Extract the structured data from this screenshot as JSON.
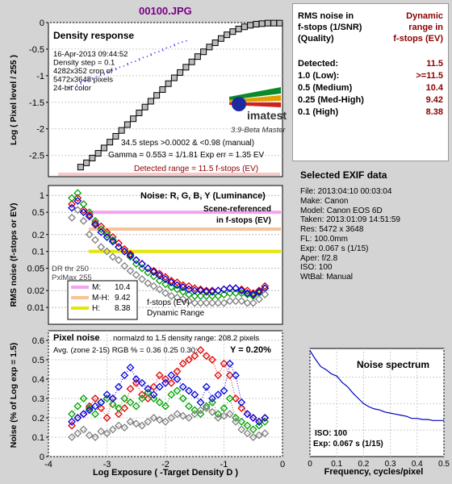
{
  "file_title": "00100.JPG",
  "rms_table": {
    "header_left": [
      "RMS noise in",
      "f-stops (1/SNR)",
      "(Quality)"
    ],
    "header_right": [
      "Dynamic",
      "range in",
      "f-stops (EV)"
    ],
    "rows": [
      {
        "label": "Detected:",
        "value": "11.5"
      },
      {
        "label": "1.0  (Low):",
        "value": ">=11.5"
      },
      {
        "label": "0.5  (Medium)",
        "value": "10.4"
      },
      {
        "label": "0.25 (Med-High)",
        "value": "9.42"
      },
      {
        "label": "0.1  (High)",
        "value": "8.38"
      }
    ]
  },
  "exif": {
    "title": "Selected EXIF data",
    "lines": [
      "File:  2013:04:10 00:03:04",
      "Make:  Canon",
      "Model: Canon EOS 6D",
      "Taken:  2013:01:09 14:51:59",
      "Res:    5472 x 3648",
      "FL:  100.0mm",
      "Exp:  0.067 s  (1/15)",
      "Aper:  f/2.8",
      "ISO:  100",
      "WtBal: Manual"
    ]
  },
  "density_panel": {
    "title": "Density response",
    "info": [
      "16-Apr-2013 09:44:52",
      "Density step = 0.1",
      "4282x352 crop of",
      "5472x3648 pixels",
      "24-bit color"
    ],
    "logo": "imatest",
    "version": "3.9-Beta  Master",
    "stats": [
      "34.5 steps >0.0002 & <0.98 (manual)",
      "Gamma = 0.553 = 1/1.81  Exp err = 1.35 EV"
    ],
    "detected_range": "Detected range = 11.5 f-stops (EV)",
    "ylabel": "Log ( Pixel level / 255 )"
  },
  "rms_panel": {
    "title": "Noise: R, G, B, Y (Luminance)",
    "note": [
      "Scene-referenced",
      "in f-stops (EV)"
    ],
    "dr_note": [
      "DR thr 250",
      "PxlMax 255"
    ],
    "legend": [
      {
        "label": "M:",
        "value": "10.4",
        "color": "#f4a3f0"
      },
      {
        "label": "M-H:",
        "value": "9.42",
        "color": "#f6c39a"
      },
      {
        "label": "H:",
        "value": "8.38",
        "color": "#e6e600"
      }
    ],
    "legend_note": [
      "f-stops (EV)",
      "Dynamic Range"
    ],
    "ylabel": "RMS noise (f-stops or EV)"
  },
  "pixel_panel": {
    "title": "Pixel noise",
    "norm": "normalzd to 1.5 density range: 208.2 pixels",
    "avg": "Avg. (zone 2-15) RGB % = 0.36  0.25  0.30;",
    "y_value": "Y = 0.20%",
    "ylabel": "Noise (% of Log exp = 1.5)",
    "xlabel": "Log Exposure ( -Target Density D )"
  },
  "spectrum_panel": {
    "title": "Noise spectrum",
    "iso": "ISO:   100",
    "exp": "Exp:   0.067 s   (1/15)",
    "xlabel": "Frequency, cycles/pixel"
  },
  "colors": {
    "red": "#e00000",
    "green": "#00a000",
    "blue": "#0000e0",
    "gray": "#808080",
    "accent": "#8b0000"
  },
  "chart_data": [
    {
      "type": "scatter",
      "title": "Density response",
      "xlabel": "",
      "ylabel": "Log ( Pixel level / 255 )",
      "xlim": [
        -4,
        0
      ],
      "ylim": [
        -2.9,
        0
      ],
      "yticks": [
        0,
        -0.5,
        -1,
        -1.5,
        -2,
        -2.5
      ],
      "series": [
        {
          "name": "",
          "marker": "square",
          "x": [
            -3.45,
            -3.35,
            -3.25,
            -3.15,
            -3.05,
            -2.95,
            -2.85,
            -2.75,
            -2.65,
            -2.55,
            -2.45,
            -2.35,
            -2.25,
            -2.15,
            -2.05,
            -1.95,
            -1.85,
            -1.75,
            -1.65,
            -1.55,
            -1.45,
            -1.35,
            -1.25,
            -1.15,
            -1.05,
            -0.95,
            -0.85,
            -0.75,
            -0.65,
            -0.55,
            -0.45,
            -0.35,
            -0.25,
            -0.15,
            -0.05
          ],
          "y": [
            -2.72,
            -2.64,
            -2.55,
            -2.46,
            -2.36,
            -2.25,
            -2.14,
            -2.03,
            -1.92,
            -1.81,
            -1.7,
            -1.59,
            -1.48,
            -1.37,
            -1.26,
            -1.15,
            -1.04,
            -0.94,
            -0.84,
            -0.74,
            -0.64,
            -0.55,
            -0.46,
            -0.38,
            -0.3,
            -0.23,
            -0.17,
            -0.12,
            -0.08,
            -0.05,
            -0.03,
            -0.02,
            -0.01,
            -0.01,
            -0.01
          ]
        },
        {
          "name": "",
          "marker": "dots",
          "x": [
            -3.65,
            -3.45,
            -3.25,
            -3.05,
            -2.85,
            -2.65,
            -2.45,
            -2.25,
            -2.05,
            -1.85
          ],
          "y": [
            -1.22,
            -1.13,
            -1.04,
            -0.95,
            -0.86,
            -0.77,
            -0.68,
            -0.59,
            -0.5,
            -0.41
          ]
        }
      ]
    },
    {
      "type": "scatter",
      "title": "Noise: R, G, B, Y (Luminance)",
      "ylabel": "RMS noise (f-stops or EV)",
      "yscale": "log",
      "ylim": [
        0.005,
        1.5
      ],
      "xlim": [
        -4,
        0
      ],
      "ytick_labels": [
        "1",
        "0.5",
        "0.2",
        "0.1",
        "0.05",
        "0.02",
        "0.01"
      ],
      "thresholds": [
        0.5,
        0.25,
        0.1
      ],
      "x": [
        -3.6,
        -3.5,
        -3.4,
        -3.3,
        -3.2,
        -3.1,
        -3.0,
        -2.9,
        -2.8,
        -2.7,
        -2.6,
        -2.5,
        -2.4,
        -2.3,
        -2.2,
        -2.1,
        -2.0,
        -1.9,
        -1.8,
        -1.7,
        -1.6,
        -1.5,
        -1.4,
        -1.3,
        -1.2,
        -1.1,
        -1.0,
        -0.9,
        -0.8,
        -0.7,
        -0.6,
        -0.5,
        -0.4,
        -0.3
      ],
      "series": [
        {
          "name": "R",
          "values": [
            0.7,
            0.9,
            0.55,
            0.45,
            0.32,
            0.28,
            0.22,
            0.18,
            0.14,
            0.11,
            0.09,
            0.07,
            0.06,
            0.05,
            0.045,
            0.04,
            0.035,
            0.03,
            0.028,
            0.025,
            0.024,
            0.022,
            0.021,
            0.02,
            0.02,
            0.02,
            0.021,
            0.022,
            0.022,
            0.021,
            0.02,
            0.018,
            0.02,
            0.024
          ]
        },
        {
          "name": "G",
          "values": [
            0.9,
            1.1,
            0.7,
            0.5,
            0.35,
            0.25,
            0.2,
            0.16,
            0.12,
            0.1,
            0.08,
            0.06,
            0.05,
            0.042,
            0.036,
            0.03,
            0.026,
            0.023,
            0.021,
            0.019,
            0.017,
            0.016,
            0.016,
            0.016,
            0.016,
            0.016,
            0.017,
            0.018,
            0.018,
            0.018,
            0.017,
            0.016,
            0.018,
            0.022
          ]
        },
        {
          "name": "B",
          "values": [
            0.6,
            0.8,
            0.5,
            0.42,
            0.3,
            0.22,
            0.18,
            0.15,
            0.12,
            0.1,
            0.085,
            0.07,
            0.06,
            0.05,
            0.043,
            0.037,
            0.032,
            0.028,
            0.025,
            0.023,
            0.021,
            0.02,
            0.02,
            0.019,
            0.019,
            0.02,
            0.021,
            0.022,
            0.022,
            0.02,
            0.018,
            0.017,
            0.019,
            0.022
          ]
        },
        {
          "name": "Y",
          "values": [
            0.4,
            0.55,
            0.35,
            0.2,
            0.16,
            0.12,
            0.1,
            0.08,
            0.07,
            0.055,
            0.045,
            0.038,
            0.032,
            0.027,
            0.024,
            0.021,
            0.018,
            0.016,
            0.015,
            0.014,
            0.013,
            0.012,
            0.012,
            0.012,
            0.012,
            0.012,
            0.012,
            0.013,
            0.013,
            0.013,
            0.012,
            0.012,
            0.014,
            0.017
          ]
        }
      ]
    },
    {
      "type": "line",
      "title": "Pixel noise",
      "xlabel": "Log Exposure ( -Target Density D )",
      "ylabel": "Noise (% of Log exp = 1.5)",
      "xlim": [
        -4,
        0
      ],
      "ylim": [
        0,
        0.65
      ],
      "xticks": [
        -4,
        -3,
        -2,
        -1,
        0
      ],
      "yticks": [
        0,
        0.1,
        0.2,
        0.3,
        0.4,
        0.5,
        0.6
      ],
      "x": [
        -3.6,
        -3.5,
        -3.4,
        -3.3,
        -3.2,
        -3.1,
        -3.0,
        -2.9,
        -2.8,
        -2.7,
        -2.6,
        -2.5,
        -2.4,
        -2.3,
        -2.2,
        -2.1,
        -2.0,
        -1.9,
        -1.8,
        -1.7,
        -1.6,
        -1.5,
        -1.4,
        -1.3,
        -1.2,
        -1.1,
        -1.0,
        -0.9,
        -0.8,
        -0.7,
        -0.6,
        -0.5,
        -0.4,
        -0.3
      ],
      "series": [
        {
          "name": "R",
          "values": [
            0.16,
            0.2,
            0.22,
            0.26,
            0.3,
            0.25,
            0.2,
            0.3,
            0.22,
            0.25,
            0.35,
            0.38,
            0.32,
            0.3,
            0.36,
            0.42,
            0.4,
            0.38,
            0.44,
            0.48,
            0.5,
            0.52,
            0.55,
            0.52,
            0.5,
            0.42,
            0.48,
            0.42,
            0.3,
            0.25,
            0.22,
            0.2,
            0.18,
            0.2
          ]
        },
        {
          "name": "G",
          "values": [
            0.22,
            0.26,
            0.3,
            0.25,
            0.22,
            0.28,
            0.3,
            0.27,
            0.25,
            0.3,
            0.28,
            0.26,
            0.3,
            0.33,
            0.3,
            0.28,
            0.26,
            0.32,
            0.34,
            0.3,
            0.26,
            0.24,
            0.22,
            0.26,
            0.28,
            0.22,
            0.25,
            0.3,
            0.2,
            0.18,
            0.16,
            0.14,
            0.16,
            0.18
          ]
        },
        {
          "name": "B",
          "values": [
            0.18,
            0.2,
            0.22,
            0.24,
            0.26,
            0.28,
            0.32,
            0.3,
            0.36,
            0.42,
            0.46,
            0.4,
            0.38,
            0.35,
            0.32,
            0.36,
            0.38,
            0.42,
            0.4,
            0.36,
            0.34,
            0.32,
            0.28,
            0.36,
            0.3,
            0.32,
            0.34,
            0.48,
            0.42,
            0.28,
            0.22,
            0.2,
            0.18,
            0.2
          ]
        },
        {
          "name": "Y",
          "values": [
            0.1,
            0.12,
            0.14,
            0.11,
            0.1,
            0.13,
            0.12,
            0.14,
            0.16,
            0.15,
            0.18,
            0.17,
            0.16,
            0.18,
            0.2,
            0.19,
            0.18,
            0.2,
            0.22,
            0.21,
            0.2,
            0.22,
            0.24,
            0.25,
            0.23,
            0.2,
            0.21,
            0.22,
            0.18,
            0.14,
            0.12,
            0.1,
            0.11,
            0.12
          ]
        }
      ]
    },
    {
      "type": "line",
      "title": "Noise spectrum",
      "xlabel": "Frequency, cycles/pixel",
      "xlim": [
        0,
        0.5
      ],
      "xticks": [
        0,
        0.1,
        0.2,
        0.3,
        0.4,
        0.5
      ],
      "series": [
        {
          "name": "",
          "x": [
            0,
            0.02,
            0.04,
            0.06,
            0.08,
            0.1,
            0.12,
            0.14,
            0.16,
            0.18,
            0.2,
            0.22,
            0.24,
            0.26,
            0.28,
            0.3,
            0.32,
            0.34,
            0.36,
            0.38,
            0.4,
            0.42,
            0.44,
            0.46,
            0.48,
            0.5
          ],
          "values": [
            1.0,
            0.92,
            0.85,
            0.82,
            0.78,
            0.76,
            0.7,
            0.66,
            0.6,
            0.55,
            0.5,
            0.47,
            0.45,
            0.44,
            0.42,
            0.41,
            0.4,
            0.39,
            0.38,
            0.36,
            0.36,
            0.35,
            0.35,
            0.34,
            0.34,
            0.34
          ]
        }
      ]
    }
  ]
}
